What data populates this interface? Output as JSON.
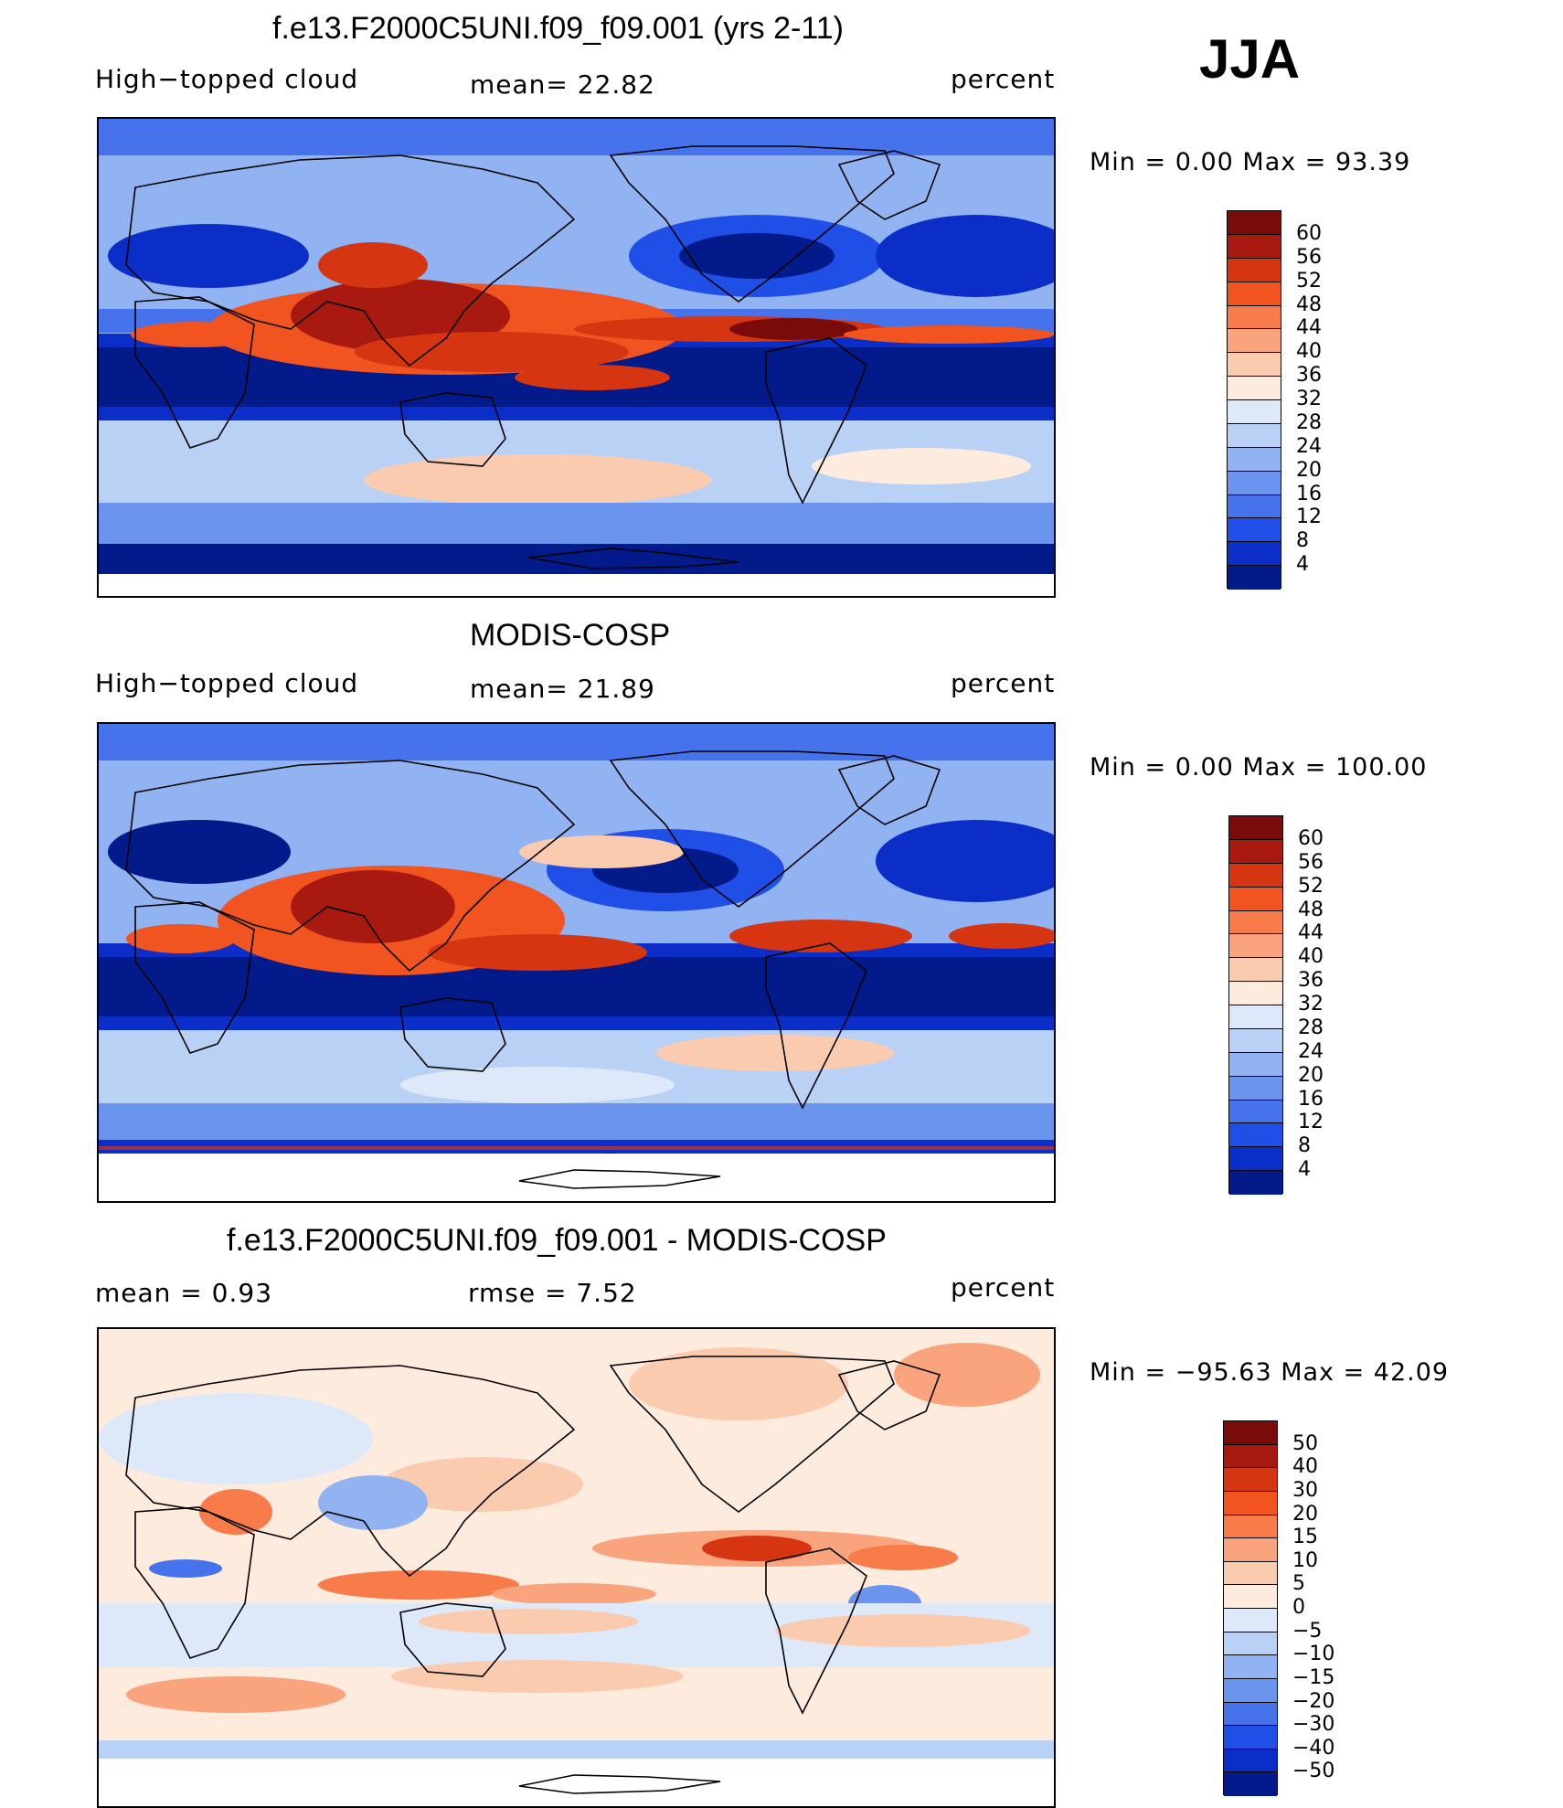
{
  "season": "JJA",
  "panels": [
    {
      "title": "f.e13.F2000C5UNI.f09_f09.001 (yrs 2-11)",
      "left_label": "High−topped cloud",
      "center_label": "mean=   22.82",
      "right_label": "percent",
      "minmax": "Min  =    0.00  Max  =   93.39",
      "colorbar": {
        "colors": [
          "#7a0b0b",
          "#a81a10",
          "#d63512",
          "#f25420",
          "#f77c49",
          "#f9a47d",
          "#fbcbb0",
          "#fdebde",
          "#dde9f8",
          "#b9d1f5",
          "#91b3f2",
          "#6b94ee",
          "#4673ec",
          "#1f4fe6",
          "#0b2ec9",
          "#031a8a"
        ],
        "labels": [
          "60",
          "56",
          "52",
          "48",
          "44",
          "40",
          "36",
          "32",
          "28",
          "24",
          "20",
          "16",
          "12",
          "8",
          "4"
        ]
      },
      "field": "model"
    },
    {
      "title": "MODIS-COSP",
      "left_label": "High−topped cloud",
      "center_label": "mean=   21.89",
      "right_label": "percent",
      "minmax": "Min  =    0.00  Max  =  100.00",
      "colorbar": {
        "colors": [
          "#7a0b0b",
          "#a81a10",
          "#d63512",
          "#f25420",
          "#f77c49",
          "#f9a47d",
          "#fbcbb0",
          "#fdebde",
          "#dde9f8",
          "#b9d1f5",
          "#91b3f2",
          "#6b94ee",
          "#4673ec",
          "#1f4fe6",
          "#0b2ec9",
          "#031a8a"
        ],
        "labels": [
          "60",
          "56",
          "52",
          "48",
          "44",
          "40",
          "36",
          "32",
          "28",
          "24",
          "20",
          "16",
          "12",
          "8",
          "4"
        ]
      },
      "field": "obs"
    },
    {
      "title": "f.e13.F2000C5UNI.f09_f09.001 - MODIS-COSP",
      "left_label": "mean  =     0.93",
      "center_label": "rmse  =     7.52",
      "right_label": "percent",
      "minmax": "Min  = −95.63  Max  =   42.09",
      "colorbar": {
        "colors": [
          "#7a0b0b",
          "#a81a10",
          "#d63512",
          "#f25420",
          "#f77c49",
          "#f9a47d",
          "#fbcbb0",
          "#fdebde",
          "#dde9f8",
          "#b9d1f5",
          "#91b3f2",
          "#6b94ee",
          "#4673ec",
          "#1f4fe6",
          "#0b2ec9",
          "#031a8a"
        ],
        "labels": [
          "50",
          "40",
          "30",
          "20",
          "15",
          "10",
          "5",
          "0",
          "−5",
          "−10",
          "−15",
          "−20",
          "−30",
          "−40",
          "−50"
        ]
      },
      "field": "diff"
    }
  ]
}
